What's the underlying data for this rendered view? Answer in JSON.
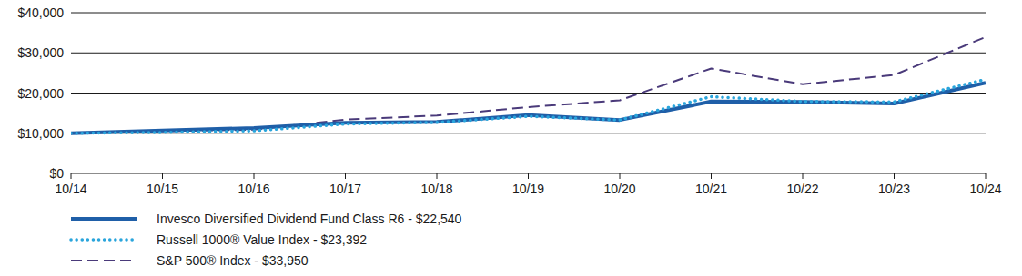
{
  "chart_data": {
    "type": "line",
    "categories": [
      "10/14",
      "10/15",
      "10/16",
      "10/17",
      "10/18",
      "10/19",
      "10/20",
      "10/21",
      "10/22",
      "10/23",
      "10/24"
    ],
    "series": [
      {
        "name": "Invesco Diversified Dividend Fund Class R6 - $22,540",
        "color": "#1f5fa8",
        "line_style": "solid",
        "values": [
          10000,
          10700,
          11300,
          12600,
          12800,
          14500,
          13300,
          17900,
          17800,
          17400,
          22540
        ]
      },
      {
        "name": "Russell 1000® Value Index - $23,392",
        "color": "#2aa5dc",
        "line_style": "dotted",
        "values": [
          10000,
          10200,
          10600,
          12300,
          12700,
          14200,
          13300,
          19100,
          17900,
          17800,
          23392
        ]
      },
      {
        "name": "S&P 500® Index - $33,950",
        "color": "#4a3a7a",
        "line_style": "dashed",
        "values": [
          10000,
          10500,
          10900,
          13400,
          14400,
          16500,
          18200,
          26100,
          22200,
          24500,
          33950
        ]
      }
    ],
    "ylim": [
      0,
      40000
    ],
    "yticks": [
      {
        "value": 0,
        "label": "$0"
      },
      {
        "value": 10000,
        "label": "$10,000"
      },
      {
        "value": 20000,
        "label": "$20,000"
      },
      {
        "value": 30000,
        "label": "$30,000"
      },
      {
        "value": 40000,
        "label": "$40,000"
      }
    ],
    "grid": true,
    "legend": "bottom"
  }
}
